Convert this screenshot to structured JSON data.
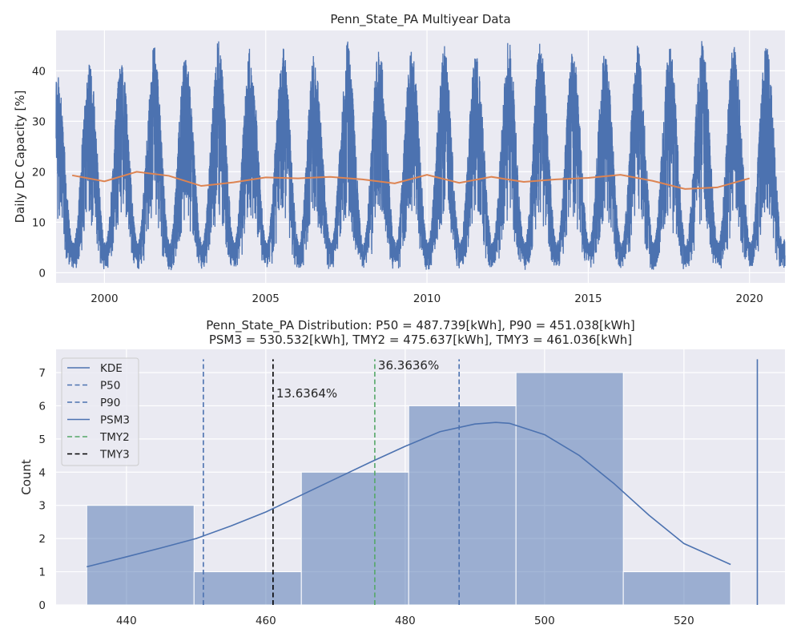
{
  "colors": {
    "face": "#eaeaf2",
    "grid": "#ffffff",
    "blue": "#4c72b0",
    "orange": "#dd8452",
    "green": "#55a868",
    "black": "#000000",
    "bar_fill": "#4c72b0"
  },
  "chart_data": [
    {
      "type": "line",
      "title": "Penn_State_PA Multiyear Data",
      "xlabel": "",
      "ylabel": "Daily DC Capacity [%]",
      "xlim": [
        1998.5,
        2021.1
      ],
      "ylim": [
        -2,
        48
      ],
      "x_ticks": [
        2000,
        2005,
        2010,
        2015,
        2020
      ],
      "y_ticks": [
        0,
        10,
        20,
        30,
        40
      ],
      "grid": true,
      "series": [
        {
          "name": "",
          "kind": "daily seasonal",
          "x_start": 1998.5,
          "x_end": 2021.1,
          "summer_peak_max": [
            40,
            42,
            41.5,
            45,
            43,
            46,
            42,
            45,
            41,
            46,
            44,
            44,
            45,
            43,
            46,
            44,
            44,
            43,
            45,
            45,
            46,
            45,
            45
          ],
          "winter_floor_min": [
            0,
            0,
            0,
            0.5,
            0,
            0,
            0,
            0.3,
            0,
            0.5,
            0,
            0,
            0.2,
            0,
            0,
            0,
            0.5,
            0,
            0,
            0,
            0,
            0.5,
            0,
            0.5
          ]
        },
        {
          "name": "",
          "kind": "annual mean",
          "x": [
            1999,
            2000,
            2001,
            2002,
            2003,
            2004,
            2005,
            2006,
            2007,
            2008,
            2009,
            2010,
            2011,
            2012,
            2013,
            2014,
            2015,
            2016,
            2017,
            2018,
            2019,
            2020
          ],
          "y": [
            19.3,
            18.1,
            20.0,
            19.2,
            17.2,
            17.9,
            18.9,
            18.7,
            19.0,
            18.5,
            17.7,
            19.4,
            17.8,
            19.0,
            18.0,
            18.5,
            18.8,
            19.4,
            18.2,
            16.6,
            16.9,
            18.7
          ]
        }
      ]
    },
    {
      "type": "bar",
      "title": "Penn_State_PA Distribution: P50 = 487.739[kWh], P90 = 451.038[kWh]",
      "subtitle": "PSM3 = 530.532[kWh], TMY2 = 475.637[kWh], TMY3 = 461.036[kWh]",
      "xlabel": "",
      "ylabel": "Count",
      "xlim": [
        429.9,
        534.5
      ],
      "ylim": [
        0,
        7.7
      ],
      "x_ticks": [
        440,
        460,
        480,
        500,
        520
      ],
      "y_ticks": [
        0,
        1,
        2,
        3,
        4,
        5,
        6,
        7
      ],
      "grid": true,
      "legend": "top-left",
      "bins": [
        {
          "x0": 434.3,
          "x1": 449.7,
          "count": 3
        },
        {
          "x0": 449.7,
          "x1": 465.1,
          "count": 1
        },
        {
          "x0": 465.1,
          "x1": 480.5,
          "count": 4
        },
        {
          "x0": 480.5,
          "x1": 495.9,
          "count": 6
        },
        {
          "x0": 495.9,
          "x1": 511.3,
          "count": 7
        },
        {
          "x0": 511.3,
          "x1": 526.7,
          "count": 1
        }
      ],
      "kde": {
        "name": "KDE",
        "x": [
          434.3,
          440,
          445,
          450,
          455,
          460,
          465,
          470,
          475,
          480,
          485,
          490,
          493,
          495,
          500,
          505,
          510,
          515,
          520,
          526.7
        ],
        "y": [
          1.15,
          1.45,
          1.72,
          2.0,
          2.38,
          2.8,
          3.3,
          3.8,
          4.3,
          4.78,
          5.22,
          5.45,
          5.5,
          5.47,
          5.13,
          4.5,
          3.65,
          2.7,
          1.85,
          1.22
        ]
      },
      "vlines": [
        {
          "name": "P50",
          "x": 487.739,
          "style": "dashed",
          "color": "#4c72b0",
          "y_top": 7.4
        },
        {
          "name": "P90",
          "x": 451.038,
          "style": "dashed",
          "color": "#4c72b0",
          "y_top": 7.4
        },
        {
          "name": "PSM3",
          "x": 530.532,
          "style": "solid",
          "color": "#4c72b0",
          "y_top": 7.4
        },
        {
          "name": "TMY2",
          "x": 475.637,
          "style": "dashed",
          "color": "#55a868",
          "y_top": 7.4
        },
        {
          "name": "TMY3",
          "x": 461.036,
          "style": "dashed",
          "color": "#000000",
          "y_top": 7.4
        }
      ],
      "annotations": [
        {
          "text": "36.3636%",
          "x": 476.1,
          "y": 7.1
        },
        {
          "text": "13.6364%",
          "x": 461.5,
          "y": 6.25
        }
      ],
      "legend_entries": [
        {
          "label": "KDE",
          "style": "solid",
          "color": "#4c72b0"
        },
        {
          "label": "P50",
          "style": "dashed",
          "color": "#4c72b0"
        },
        {
          "label": "P90",
          "style": "dashed",
          "color": "#4c72b0"
        },
        {
          "label": "PSM3",
          "style": "solid",
          "color": "#4c72b0"
        },
        {
          "label": "TMY2",
          "style": "dashed",
          "color": "#55a868"
        },
        {
          "label": "TMY3",
          "style": "dashed",
          "color": "#000000"
        }
      ]
    }
  ]
}
